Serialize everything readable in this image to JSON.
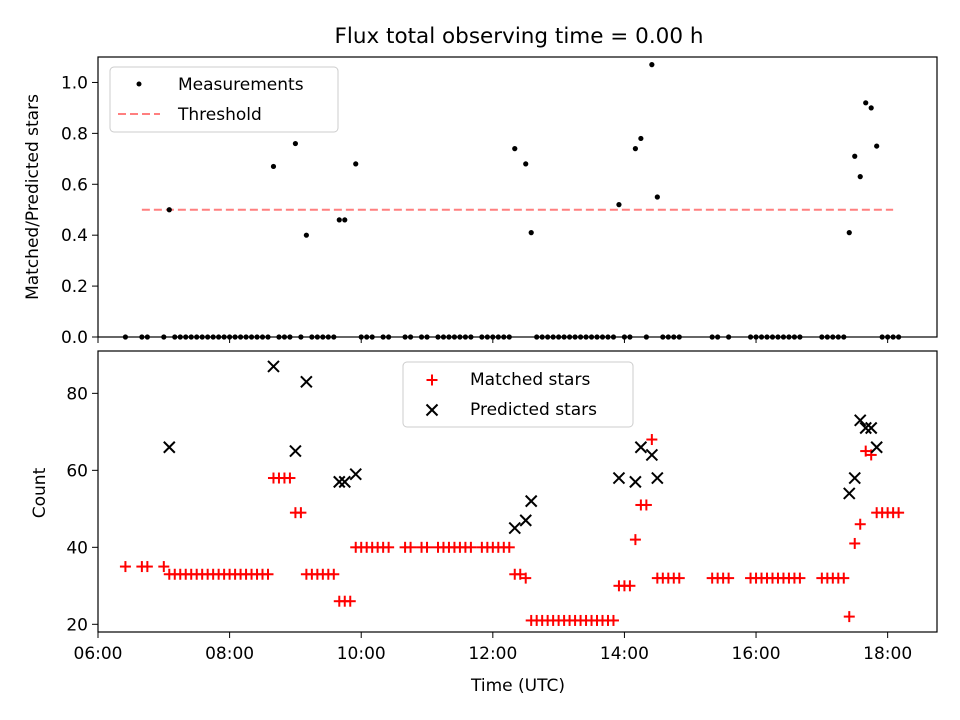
{
  "title": "Flux total observing time = 0.00 h",
  "colors": {
    "measurement": "#000000",
    "threshold": "#ff7f7f",
    "matched": "#ff0000",
    "predicted": "#000000"
  },
  "chart_data": [
    {
      "type": "scatter",
      "ylabel": "Matched/Predicted stars",
      "ylim": [
        0,
        1.1
      ],
      "yticks": [
        "0.0",
        "0.2",
        "0.4",
        "0.6",
        "0.8",
        "1.0"
      ],
      "xlim": [
        "06:00",
        "18:45"
      ],
      "legend": {
        "placement": "top-left",
        "entries": [
          "Measurements",
          "Threshold"
        ]
      },
      "threshold": {
        "value": 0.5,
        "from": "06:40",
        "to": "18:05"
      },
      "series": [
        {
          "name": "Measurements",
          "points": [
            [
              "07:05",
              0.5
            ],
            [
              "08:40",
              0.67
            ],
            [
              "09:00",
              0.76
            ],
            [
              "09:10",
              0.4
            ],
            [
              "09:40",
              0.46
            ],
            [
              "09:45",
              0.46
            ],
            [
              "09:55",
              0.68
            ],
            [
              "12:20",
              0.74
            ],
            [
              "12:30",
              0.68
            ],
            [
              "12:35",
              0.41
            ],
            [
              "13:55",
              0.52
            ],
            [
              "14:10",
              0.74
            ],
            [
              "14:15",
              0.78
            ],
            [
              "14:25",
              1.07
            ],
            [
              "14:30",
              0.55
            ],
            [
              "17:25",
              0.41
            ],
            [
              "17:30",
              0.71
            ],
            [
              "17:35",
              0.63
            ],
            [
              "17:40",
              0.92
            ],
            [
              "17:45",
              0.9
            ],
            [
              "17:50",
              0.75
            ]
          ],
          "zeros": [
            "06:25",
            "06:40",
            "06:45",
            "07:00",
            "07:10",
            "07:15",
            "07:20",
            "07:25",
            "07:30",
            "07:35",
            "07:40",
            "07:45",
            "07:50",
            "07:55",
            "08:00",
            "08:05",
            "08:10",
            "08:15",
            "08:20",
            "08:25",
            "08:30",
            "08:35",
            "08:45",
            "08:50",
            "08:55",
            "09:05",
            "09:15",
            "09:20",
            "09:25",
            "09:30",
            "09:35",
            "10:00",
            "10:05",
            "10:10",
            "10:20",
            "10:25",
            "10:40",
            "10:45",
            "10:55",
            "11:00",
            "11:10",
            "11:15",
            "11:20",
            "11:25",
            "11:30",
            "11:35",
            "11:40",
            "11:50",
            "11:55",
            "12:00",
            "12:05",
            "12:10",
            "12:15",
            "12:40",
            "12:45",
            "12:50",
            "12:55",
            "13:00",
            "13:05",
            "13:10",
            "13:15",
            "13:20",
            "13:25",
            "13:30",
            "13:35",
            "13:40",
            "13:45",
            "13:50",
            "14:00",
            "14:05",
            "14:20",
            "14:35",
            "14:40",
            "14:45",
            "14:50",
            "15:20",
            "15:25",
            "15:35",
            "15:55",
            "16:00",
            "16:05",
            "16:10",
            "16:15",
            "16:20",
            "16:25",
            "16:30",
            "16:35",
            "16:40",
            "17:00",
            "17:05",
            "17:10",
            "17:15",
            "17:20",
            "17:55",
            "18:00",
            "18:05",
            "18:10"
          ]
        }
      ]
    },
    {
      "type": "scatter",
      "xlabel": "Time (UTC)",
      "ylabel": "Count",
      "ylim": [
        18,
        91
      ],
      "yticks": [
        "20",
        "40",
        "60",
        "80"
      ],
      "xlim": [
        "06:00",
        "18:45"
      ],
      "xticks": [
        "06:00",
        "08:00",
        "10:00",
        "12:00",
        "14:00",
        "16:00",
        "18:00"
      ],
      "legend": {
        "placement": "top-center",
        "entries": [
          "Matched stars",
          "Predicted stars"
        ]
      },
      "series": [
        {
          "name": "Matched stars",
          "points": [
            [
              "06:25",
              35
            ],
            [
              "06:40",
              35
            ],
            [
              "06:45",
              35
            ],
            [
              "07:00",
              35
            ],
            [
              "07:05",
              33
            ],
            [
              "07:10",
              33
            ],
            [
              "07:15",
              33
            ],
            [
              "07:20",
              33
            ],
            [
              "07:25",
              33
            ],
            [
              "07:30",
              33
            ],
            [
              "07:35",
              33
            ],
            [
              "07:40",
              33
            ],
            [
              "07:45",
              33
            ],
            [
              "07:50",
              33
            ],
            [
              "07:55",
              33
            ],
            [
              "08:00",
              33
            ],
            [
              "08:05",
              33
            ],
            [
              "08:10",
              33
            ],
            [
              "08:15",
              33
            ],
            [
              "08:20",
              33
            ],
            [
              "08:25",
              33
            ],
            [
              "08:30",
              33
            ],
            [
              "08:35",
              33
            ],
            [
              "08:40",
              58
            ],
            [
              "08:45",
              58
            ],
            [
              "08:50",
              58
            ],
            [
              "08:55",
              58
            ],
            [
              "09:00",
              49
            ],
            [
              "09:05",
              49
            ],
            [
              "09:10",
              33
            ],
            [
              "09:15",
              33
            ],
            [
              "09:20",
              33
            ],
            [
              "09:25",
              33
            ],
            [
              "09:30",
              33
            ],
            [
              "09:35",
              33
            ],
            [
              "09:40",
              26
            ],
            [
              "09:45",
              26
            ],
            [
              "09:50",
              26
            ],
            [
              "09:55",
              40
            ],
            [
              "10:00",
              40
            ],
            [
              "10:05",
              40
            ],
            [
              "10:10",
              40
            ],
            [
              "10:15",
              40
            ],
            [
              "10:20",
              40
            ],
            [
              "10:25",
              40
            ],
            [
              "10:40",
              40
            ],
            [
              "10:45",
              40
            ],
            [
              "10:55",
              40
            ],
            [
              "11:00",
              40
            ],
            [
              "11:10",
              40
            ],
            [
              "11:15",
              40
            ],
            [
              "11:20",
              40
            ],
            [
              "11:25",
              40
            ],
            [
              "11:30",
              40
            ],
            [
              "11:35",
              40
            ],
            [
              "11:40",
              40
            ],
            [
              "11:50",
              40
            ],
            [
              "11:55",
              40
            ],
            [
              "12:00",
              40
            ],
            [
              "12:05",
              40
            ],
            [
              "12:10",
              40
            ],
            [
              "12:15",
              40
            ],
            [
              "12:20",
              33
            ],
            [
              "12:25",
              33
            ],
            [
              "12:30",
              32
            ],
            [
              "12:35",
              21
            ],
            [
              "12:40",
              21
            ],
            [
              "12:45",
              21
            ],
            [
              "12:50",
              21
            ],
            [
              "12:55",
              21
            ],
            [
              "13:00",
              21
            ],
            [
              "13:05",
              21
            ],
            [
              "13:10",
              21
            ],
            [
              "13:15",
              21
            ],
            [
              "13:20",
              21
            ],
            [
              "13:25",
              21
            ],
            [
              "13:30",
              21
            ],
            [
              "13:35",
              21
            ],
            [
              "13:40",
              21
            ],
            [
              "13:45",
              21
            ],
            [
              "13:50",
              21
            ],
            [
              "13:55",
              30
            ],
            [
              "14:00",
              30
            ],
            [
              "14:05",
              30
            ],
            [
              "14:10",
              42
            ],
            [
              "14:15",
              51
            ],
            [
              "14:20",
              51
            ],
            [
              "14:25",
              68
            ],
            [
              "14:30",
              32
            ],
            [
              "14:35",
              32
            ],
            [
              "14:40",
              32
            ],
            [
              "14:45",
              32
            ],
            [
              "14:50",
              32
            ],
            [
              "15:20",
              32
            ],
            [
              "15:25",
              32
            ],
            [
              "15:30",
              32
            ],
            [
              "15:35",
              32
            ],
            [
              "15:55",
              32
            ],
            [
              "16:00",
              32
            ],
            [
              "16:05",
              32
            ],
            [
              "16:10",
              32
            ],
            [
              "16:15",
              32
            ],
            [
              "16:20",
              32
            ],
            [
              "16:25",
              32
            ],
            [
              "16:30",
              32
            ],
            [
              "16:35",
              32
            ],
            [
              "16:40",
              32
            ],
            [
              "17:00",
              32
            ],
            [
              "17:05",
              32
            ],
            [
              "17:10",
              32
            ],
            [
              "17:15",
              32
            ],
            [
              "17:20",
              32
            ],
            [
              "17:25",
              22
            ],
            [
              "17:30",
              41
            ],
            [
              "17:35",
              46
            ],
            [
              "17:40",
              65
            ],
            [
              "17:45",
              64
            ],
            [
              "17:50",
              49
            ],
            [
              "17:55",
              49
            ],
            [
              "18:00",
              49
            ],
            [
              "18:05",
              49
            ],
            [
              "18:10",
              49
            ]
          ]
        },
        {
          "name": "Predicted stars",
          "points": [
            [
              "07:05",
              66
            ],
            [
              "08:40",
              87
            ],
            [
              "09:00",
              65
            ],
            [
              "09:10",
              83
            ],
            [
              "09:40",
              57
            ],
            [
              "09:45",
              57
            ],
            [
              "09:55",
              59
            ],
            [
              "12:20",
              45
            ],
            [
              "12:30",
              47
            ],
            [
              "12:35",
              52
            ],
            [
              "13:55",
              58
            ],
            [
              "14:10",
              57
            ],
            [
              "14:15",
              66
            ],
            [
              "14:25",
              64
            ],
            [
              "14:30",
              58
            ],
            [
              "17:25",
              54
            ],
            [
              "17:30",
              58
            ],
            [
              "17:35",
              73
            ],
            [
              "17:40",
              71
            ],
            [
              "17:45",
              71
            ],
            [
              "17:50",
              66
            ]
          ]
        }
      ]
    }
  ]
}
